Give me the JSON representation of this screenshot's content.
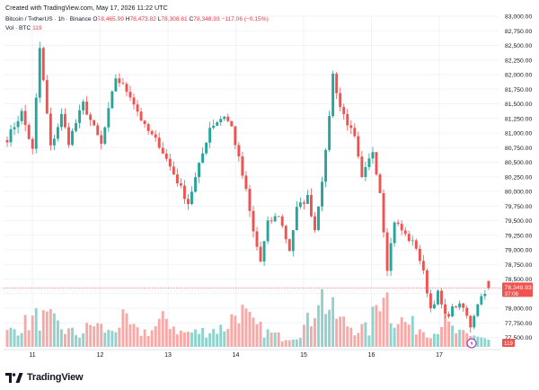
{
  "caption": "Created with TradingView.com, May 17, 2026 11:22 UTC",
  "legend": {
    "symbol": "Bitcoin / TetherUS · 1h · Binance",
    "o_label": "O",
    "o_value": "78,465.99",
    "h_label": "H",
    "h_value": "78,473.82",
    "l_label": "L",
    "l_value": "78,308.61",
    "c_label": "C",
    "c_value": "78,348.93",
    "change": "−117.06 (−0.15%)",
    "vol_label": "Vol · BTC",
    "vol_value": "119"
  },
  "price_tag": {
    "value": "78,348.93",
    "countdown": "37:08"
  },
  "vol_tag": "119",
  "footer_logo": "TradingView",
  "colors": {
    "up": "#26a69a",
    "down": "#ef5350",
    "vol_up": "#8fd3cc",
    "vol_down": "#f7a9a7",
    "grid": "#f0f3fa"
  },
  "chart_data": {
    "type": "candlestick",
    "y_ticks": [
      "77,500.00",
      "77,750.00",
      "78,000.00",
      "78,250.00",
      "78,500.00",
      "78,750.00",
      "79,000.00",
      "79,250.00",
      "79,500.00",
      "79,750.00",
      "80,000.00",
      "80,250.00",
      "80,500.00",
      "80,750.00",
      "81,000.00",
      "81,250.00",
      "81,500.00",
      "81,750.00",
      "82,000.00",
      "82,250.00",
      "82,500.00",
      "82,750.00",
      "83,000.00"
    ],
    "ylim": [
      77400,
      83000
    ],
    "x_ticks": [
      "11",
      "12",
      "13",
      "14",
      "15",
      "16",
      "17"
    ],
    "anchors": [
      [
        0,
        80900
      ],
      [
        4,
        81350
      ],
      [
        7,
        80700
      ],
      [
        9,
        82450
      ],
      [
        12,
        80750
      ],
      [
        15,
        81300
      ],
      [
        17,
        80850
      ],
      [
        21,
        81500
      ],
      [
        26,
        80800
      ],
      [
        30,
        81950
      ],
      [
        34,
        81650
      ],
      [
        38,
        81100
      ],
      [
        42,
        80800
      ],
      [
        46,
        80300
      ],
      [
        50,
        79800
      ],
      [
        54,
        80650
      ],
      [
        56,
        81100
      ],
      [
        60,
        81300
      ],
      [
        62,
        81100
      ],
      [
        66,
        80000
      ],
      [
        68,
        79300
      ],
      [
        70,
        78800
      ],
      [
        72,
        79450
      ],
      [
        75,
        79600
      ],
      [
        78,
        79000
      ],
      [
        80,
        79700
      ],
      [
        83,
        79900
      ],
      [
        85,
        79350
      ],
      [
        88,
        80650
      ],
      [
        90,
        82000
      ],
      [
        92,
        81450
      ],
      [
        96,
        80900
      ],
      [
        98,
        80200
      ],
      [
        101,
        80700
      ],
      [
        103,
        80000
      ],
      [
        105,
        78700
      ],
      [
        107,
        79500
      ],
      [
        110,
        79250
      ],
      [
        113,
        79050
      ],
      [
        115,
        78600
      ],
      [
        117,
        78000
      ],
      [
        119,
        78250
      ],
      [
        121,
        77850
      ],
      [
        124,
        78050
      ],
      [
        126,
        78000
      ],
      [
        128,
        77700
      ],
      [
        130,
        78100
      ],
      [
        132,
        78300
      ],
      [
        133,
        78350
      ]
    ],
    "last_candle": {
      "open": 78465.99,
      "high": 78473.82,
      "low": 78308.61,
      "close": 78348.93
    },
    "volume_anchors": [
      [
        0,
        30
      ],
      [
        8,
        60
      ],
      [
        12,
        55
      ],
      [
        16,
        35
      ],
      [
        20,
        25
      ],
      [
        24,
        50
      ],
      [
        28,
        30
      ],
      [
        32,
        55
      ],
      [
        36,
        30
      ],
      [
        40,
        35
      ],
      [
        44,
        60
      ],
      [
        48,
        30
      ],
      [
        52,
        30
      ],
      [
        56,
        35
      ],
      [
        60,
        40
      ],
      [
        64,
        80
      ],
      [
        68,
        45
      ],
      [
        72,
        30
      ],
      [
        76,
        20
      ],
      [
        80,
        25
      ],
      [
        84,
        60
      ],
      [
        86,
        120
      ],
      [
        88,
        90
      ],
      [
        92,
        55
      ],
      [
        96,
        40
      ],
      [
        100,
        35
      ],
      [
        104,
        140
      ],
      [
        106,
        70
      ],
      [
        110,
        50
      ],
      [
        114,
        40
      ],
      [
        118,
        30
      ],
      [
        120,
        55
      ],
      [
        124,
        30
      ],
      [
        128,
        20
      ],
      [
        130,
        25
      ],
      [
        133,
        15
      ]
    ],
    "volume_max": 140
  }
}
